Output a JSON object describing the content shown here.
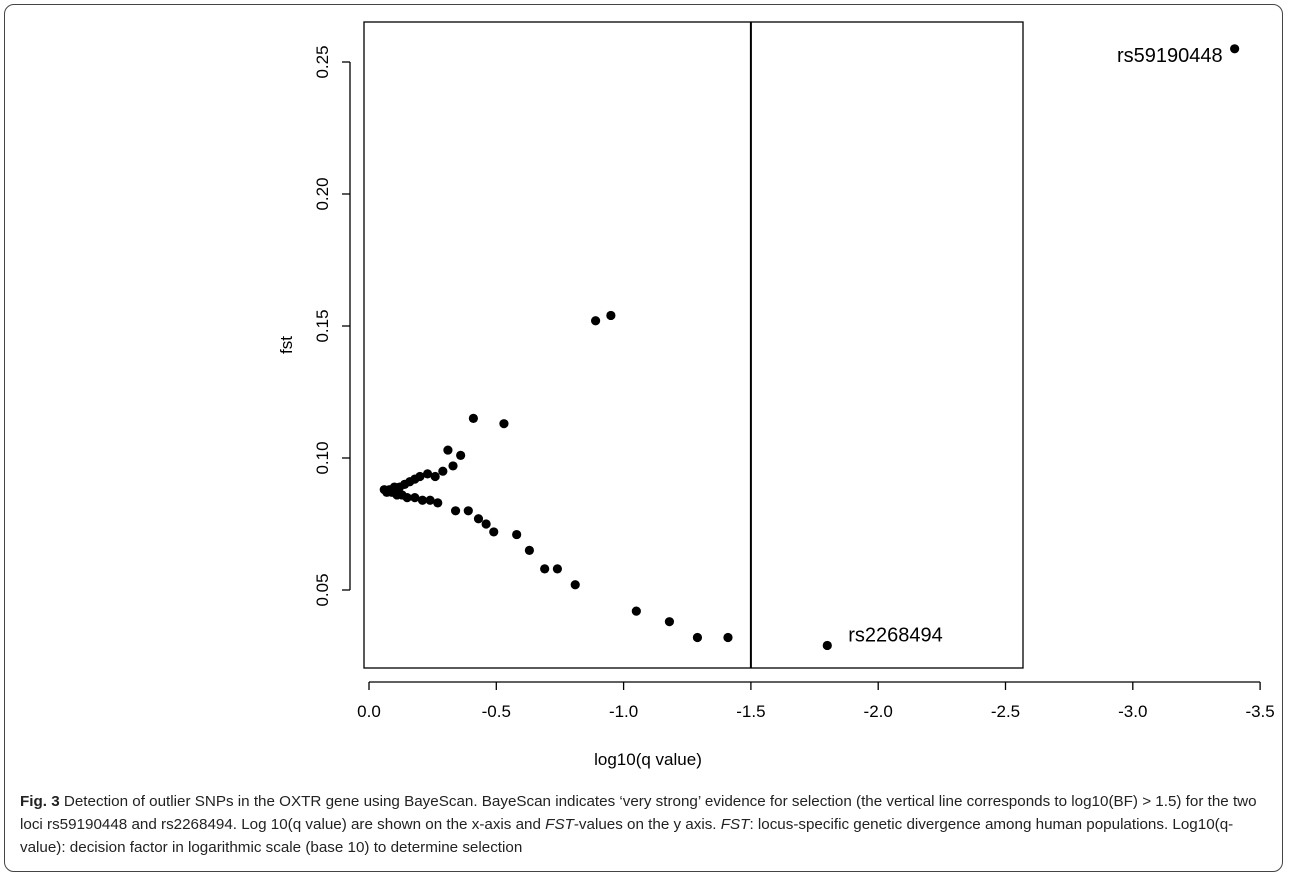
{
  "chart_data": {
    "type": "scatter",
    "xlabel": "log10(q value)",
    "ylabel": "fst",
    "xlim": [
      0.1,
      -3.6
    ],
    "ylim": [
      0.02,
      0.26
    ],
    "x_ticks": [
      "0.0",
      "-0.5",
      "-1.0",
      "-1.5",
      "-2.0",
      "-2.5",
      "-3.0",
      "-3.5"
    ],
    "x_tick_values": [
      0.0,
      -0.5,
      -1.0,
      -1.5,
      -2.0,
      -2.5,
      -3.0,
      -3.5
    ],
    "y_ticks": [
      "0.05",
      "0.10",
      "0.15",
      "0.20",
      "0.25"
    ],
    "y_tick_values": [
      0.05,
      0.1,
      0.15,
      0.2,
      0.25
    ],
    "threshold_x": -1.5,
    "points": [
      {
        "x": -3.4,
        "y": 0.255
      },
      {
        "x": -1.8,
        "y": 0.029
      },
      {
        "x": -0.95,
        "y": 0.154
      },
      {
        "x": -0.89,
        "y": 0.152
      },
      {
        "x": -0.41,
        "y": 0.115
      },
      {
        "x": -0.53,
        "y": 0.113
      },
      {
        "x": -0.31,
        "y": 0.103
      },
      {
        "x": -0.36,
        "y": 0.101
      },
      {
        "x": -0.33,
        "y": 0.097
      },
      {
        "x": -0.29,
        "y": 0.095
      },
      {
        "x": -0.26,
        "y": 0.093
      },
      {
        "x": -0.23,
        "y": 0.094
      },
      {
        "x": -0.2,
        "y": 0.093
      },
      {
        "x": -0.18,
        "y": 0.092
      },
      {
        "x": -0.16,
        "y": 0.091
      },
      {
        "x": -0.14,
        "y": 0.09
      },
      {
        "x": -0.12,
        "y": 0.089
      },
      {
        "x": -0.1,
        "y": 0.089
      },
      {
        "x": -0.08,
        "y": 0.088
      },
      {
        "x": -0.06,
        "y": 0.088
      },
      {
        "x": -0.07,
        "y": 0.087
      },
      {
        "x": -0.09,
        "y": 0.087
      },
      {
        "x": -0.11,
        "y": 0.086
      },
      {
        "x": -0.13,
        "y": 0.086
      },
      {
        "x": -0.15,
        "y": 0.085
      },
      {
        "x": -0.18,
        "y": 0.085
      },
      {
        "x": -0.21,
        "y": 0.084
      },
      {
        "x": -0.24,
        "y": 0.084
      },
      {
        "x": -0.27,
        "y": 0.083
      },
      {
        "x": -0.34,
        "y": 0.08
      },
      {
        "x": -0.39,
        "y": 0.08
      },
      {
        "x": -0.43,
        "y": 0.077
      },
      {
        "x": -0.46,
        "y": 0.075
      },
      {
        "x": -0.49,
        "y": 0.072
      },
      {
        "x": -0.58,
        "y": 0.071
      },
      {
        "x": -0.63,
        "y": 0.065
      },
      {
        "x": -0.69,
        "y": 0.058
      },
      {
        "x": -0.74,
        "y": 0.058
      },
      {
        "x": -0.81,
        "y": 0.052
      },
      {
        "x": -1.05,
        "y": 0.042
      },
      {
        "x": -1.18,
        "y": 0.038
      },
      {
        "x": -1.29,
        "y": 0.032
      },
      {
        "x": -1.41,
        "y": 0.032
      }
    ],
    "annotations": [
      {
        "text": "rs59190448",
        "x": -3.4,
        "y": 0.255,
        "anchor": "end"
      },
      {
        "text": "rs2268494",
        "x": -1.8,
        "y": 0.029,
        "anchor": "start"
      }
    ]
  },
  "caption": {
    "fig_label": "Fig. 3",
    "part1": " Detection of outlier SNPs in the OXTR gene using BayeScan. BayeScan indicates ‘very strong’ evidence for selection (the vertical line corresponds to log10(BF) > 1.5) for the two loci rs59190448 and rs2268494. Log 10(q value) are shown on the x-axis and ",
    "fst_italic_1": "FST",
    "part2": "-values on the y axis. ",
    "fst_italic_2": "FST",
    "part3": ": locus-specific genetic divergence among human populations. Log10(q-value): decision factor in logarithmic scale (base 10) to determine selection"
  }
}
